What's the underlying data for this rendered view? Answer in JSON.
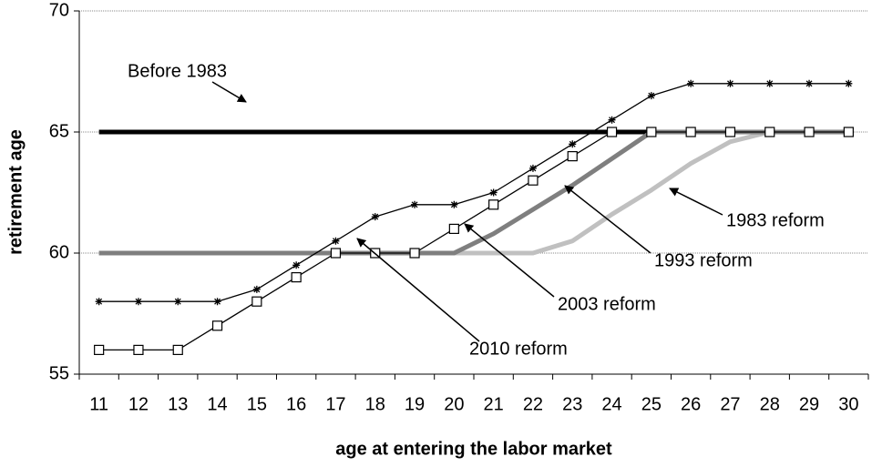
{
  "chart_data": {
    "type": "line",
    "x_label": "age at entering the labor market",
    "y_label": "retirement age",
    "categories": [
      "11",
      "12",
      "13",
      "14",
      "15",
      "16",
      "17",
      "18",
      "19",
      "20",
      "21",
      "22",
      "23",
      "24",
      "25",
      "26",
      "27",
      "28",
      "29",
      "30"
    ],
    "ylim": [
      55,
      70
    ],
    "yticks": [
      55,
      60,
      65,
      70
    ],
    "grid": true,
    "series": [
      {
        "name": "Before 1983",
        "color": "#000000",
        "marker": "none",
        "values": [
          65,
          65,
          65,
          65,
          65,
          65,
          65,
          65,
          65,
          65,
          65,
          65,
          65,
          65,
          65,
          65,
          65,
          65,
          65,
          65
        ]
      },
      {
        "name": "1983 reform",
        "color": "#c0c0c0",
        "marker": "none",
        "values": [
          60,
          60,
          60,
          60,
          60,
          60,
          60,
          60,
          60,
          60,
          60,
          60,
          60.5,
          61.6,
          62.6,
          63.7,
          64.6,
          65,
          65,
          65
        ]
      },
      {
        "name": "1993 reform",
        "color": "#7f7f7f",
        "marker": "none",
        "values": [
          60,
          60,
          60,
          60,
          60,
          60,
          60,
          60,
          60,
          60,
          60.8,
          61.8,
          62.8,
          63.9,
          65,
          65,
          65,
          65,
          65,
          65
        ]
      },
      {
        "name": "2003 reform",
        "color": "#000000",
        "marker": "square",
        "values": [
          56,
          56,
          56,
          57,
          58,
          59,
          60,
          60,
          60,
          61,
          62,
          63,
          64,
          65,
          65,
          65,
          65,
          65,
          65,
          65
        ]
      },
      {
        "name": "2010 reform",
        "color": "#000000",
        "marker": "star",
        "values": [
          58,
          58,
          58,
          58,
          58.5,
          59.5,
          60.5,
          61.5,
          62,
          62,
          62.5,
          63.5,
          64.5,
          65.5,
          66.5,
          67,
          67,
          67,
          67,
          67
        ]
      }
    ]
  }
}
